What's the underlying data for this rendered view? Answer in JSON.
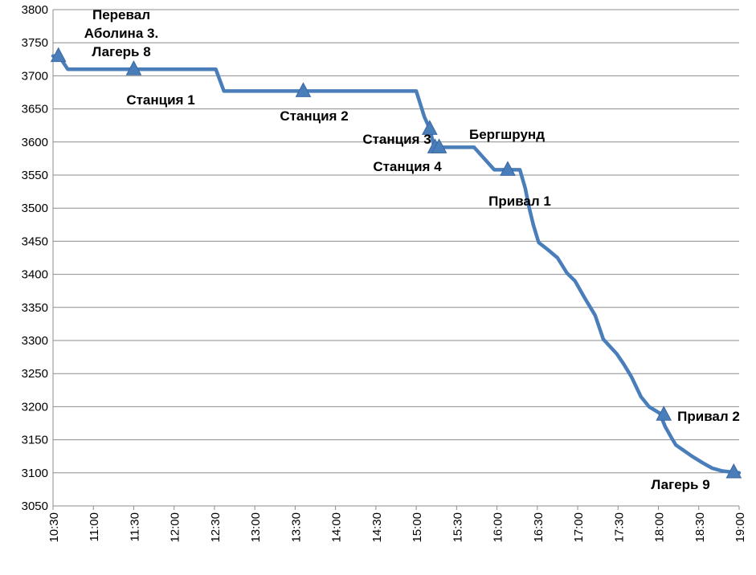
{
  "chart_data": {
    "type": "line",
    "title": "",
    "xlabel": "",
    "ylabel": "",
    "ylim": [
      3050,
      3800
    ],
    "yticks": [
      3050,
      3100,
      3150,
      3200,
      3250,
      3300,
      3350,
      3400,
      3450,
      3500,
      3550,
      3600,
      3650,
      3700,
      3750,
      3800
    ],
    "xlim": [
      "10:30",
      "19:00"
    ],
    "xticks": [
      "10:30",
      "11:00",
      "11:30",
      "12:00",
      "12:30",
      "13:00",
      "13:30",
      "14:00",
      "14:30",
      "15:00",
      "15:30",
      "16:00",
      "16:30",
      "17:00",
      "17:30",
      "18:00",
      "18:30",
      "19:00"
    ],
    "grid": "horizontal",
    "color": "#4a7ebb",
    "series": [
      {
        "x": [
          "10:30",
          "10:35",
          "10:41",
          "11:00",
          "11:30",
          "12:00",
          "12:31",
          "12:37",
          "13:00",
          "13:30",
          "14:00",
          "14:30",
          "14:50",
          "15:00",
          "15:06",
          "15:10",
          "15:13",
          "15:17",
          "15:25",
          "15:43",
          "15:58",
          "16:09",
          "16:17",
          "16:21",
          "16:24",
          "16:27",
          "16:31",
          "16:38",
          "16:45",
          "16:52",
          "16:58",
          "17:05",
          "17:13",
          "17:19",
          "17:29",
          "17:34",
          "17:40",
          "17:47",
          "17:53",
          "18:01",
          "18:05",
          "18:10",
          "18:13",
          "18:18",
          "18:25",
          "18:33",
          "18:40",
          "18:47",
          "18:55",
          "19:00"
        ],
        "y": [
          3730,
          3728,
          3710,
          3710,
          3710,
          3710,
          3710,
          3677,
          3677,
          3677,
          3677,
          3677,
          3677,
          3677,
          3638,
          3620,
          3595,
          3592,
          3592,
          3592,
          3558,
          3558,
          3558,
          3530,
          3500,
          3475,
          3448,
          3437,
          3425,
          3402,
          3390,
          3365,
          3338,
          3302,
          3280,
          3265,
          3245,
          3215,
          3200,
          3190,
          3170,
          3152,
          3142,
          3135,
          3125,
          3115,
          3107,
          3103,
          3101,
          3100
        ]
      }
    ],
    "markers": [
      {
        "x": "10:34",
        "y": 3730
      },
      {
        "x": "11:30",
        "y": 3710
      },
      {
        "x": "13:36",
        "y": 3677
      },
      {
        "x": "15:10",
        "y": 3620
      },
      {
        "x": "15:14",
        "y": 3592
      },
      {
        "x": "15:17",
        "y": 3592
      },
      {
        "x": "16:08",
        "y": 3558
      },
      {
        "x": "18:04",
        "y": 3188
      },
      {
        "x": "18:56",
        "y": 3101
      }
    ],
    "annotations": [
      {
        "lines": [
          "Перевал",
          "Аболина 3.",
          "Лагерь 8"
        ]
      },
      {
        "lines": [
          "Станция 1"
        ]
      },
      {
        "lines": [
          "Станция 2"
        ]
      },
      {
        "lines": [
          "Станция 3"
        ]
      },
      {
        "lines": [
          "Станция 4"
        ]
      },
      {
        "lines": [
          "Бергшрунд"
        ]
      },
      {
        "lines": [
          "Привал 1"
        ]
      },
      {
        "lines": [
          "Привал 2"
        ]
      },
      {
        "lines": [
          "Лагерь 9"
        ]
      }
    ]
  }
}
